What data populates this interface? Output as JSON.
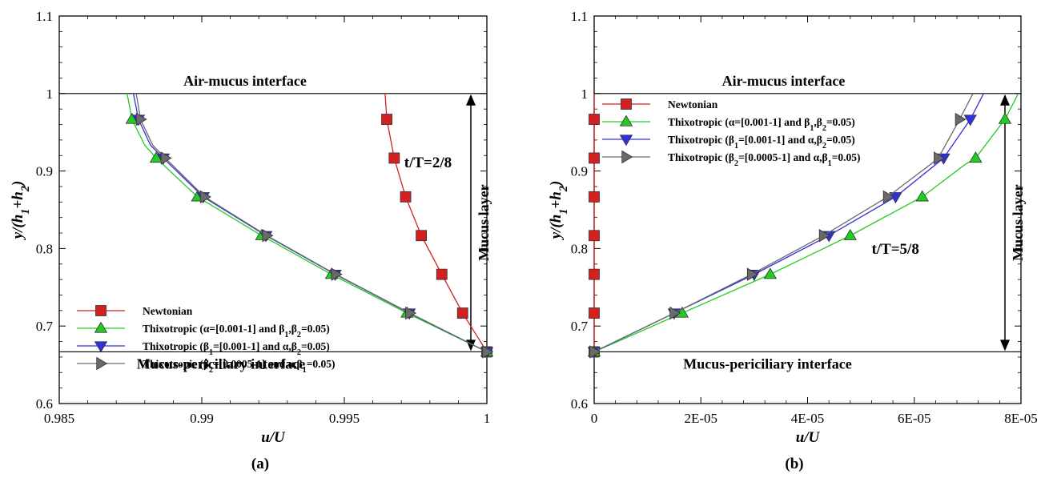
{
  "chart_data": [
    {
      "type": "line",
      "panel_label": "(a)",
      "xlabel": "u/U",
      "ylabel_html": [
        "y/(h",
        "1",
        "+h",
        "2",
        ")"
      ],
      "xlim": [
        0.985,
        1.0
      ],
      "ylim": [
        0.6,
        1.1
      ],
      "xticks": [
        0.985,
        0.99,
        0.995,
        1.0
      ],
      "xtick_labels": [
        "0.985",
        "0.99",
        "0.995",
        "1"
      ],
      "yticks": [
        0.6,
        0.7,
        0.8,
        0.9,
        1.0,
        1.1
      ],
      "ytick_labels": [
        "0.6",
        "0.7",
        "0.8",
        "0.9",
        "1",
        "1.1"
      ],
      "top_interface": {
        "y": 1.0,
        "label": "Air-mucus interface"
      },
      "bottom_interface": {
        "y": 0.6667,
        "label": "Mucus-periciliary interface"
      },
      "layer_label": "Mucus layer",
      "annotation": {
        "text": "t/T=2/8",
        "x": 0.9971,
        "y": 0.905
      },
      "legend_position": "bottom-left",
      "series": [
        {
          "name": "Newtonian",
          "color": "#d42020",
          "marker": "square",
          "line_x": [
            0.99643,
            0.99649,
            0.99675,
            0.99715,
            0.9977,
            0.99842,
            0.99915,
            1.0
          ],
          "line_y": [
            1.0,
            0.9667,
            0.9167,
            0.8667,
            0.8167,
            0.7667,
            0.7167,
            0.6667
          ],
          "marker_x": [
            0.99649,
            0.99675,
            0.99715,
            0.9977,
            0.99842,
            0.99915,
            1.0
          ],
          "marker_y": [
            0.9667,
            0.9167,
            0.8667,
            0.8167,
            0.7667,
            0.7167,
            0.6667
          ]
        },
        {
          "name": "Thixotropic (α=[0.001-1] and β1,β2=0.05)",
          "color": "#22cc22",
          "marker": "triangle-up",
          "line_x": [
            0.98738,
            0.98755,
            0.988,
            0.9884,
            0.98985,
            0.9921,
            0.99455,
            0.9972,
            1.0
          ],
          "line_y": [
            1.0,
            0.9667,
            0.9333,
            0.9167,
            0.8667,
            0.8167,
            0.7667,
            0.7167,
            0.6667
          ],
          "marker_x": [
            0.98755,
            0.9884,
            0.98985,
            0.9921,
            0.99455,
            0.9972,
            1.0
          ],
          "marker_y": [
            0.9667,
            0.9167,
            0.8667,
            0.8167,
            0.7667,
            0.7167,
            0.6667
          ]
        },
        {
          "name": "Thixotropic (β1=[0.001-1] and α,β2=0.05)",
          "color": "#3030e0",
          "marker": "triangle-down",
          "line_x": [
            0.9876,
            0.98778,
            0.9882,
            0.98865,
            0.99005,
            0.99225,
            0.99468,
            0.99728,
            1.0
          ],
          "line_y": [
            1.0,
            0.9667,
            0.9333,
            0.9167,
            0.8667,
            0.8167,
            0.7667,
            0.7167,
            0.6667
          ],
          "marker_x": [
            0.98778,
            0.98865,
            0.99005,
            0.99225,
            0.99468,
            0.99728,
            1.0
          ],
          "marker_y": [
            0.9667,
            0.9167,
            0.8667,
            0.8167,
            0.7667,
            0.7167,
            0.6667
          ]
        },
        {
          "name": "Thixotropic (β2=[0.0005-1] and α,β1=0.05)",
          "color": "#6a6a6a",
          "marker": "triangle-right",
          "line_x": [
            0.9877,
            0.98785,
            0.98828,
            0.98872,
            0.9901,
            0.99228,
            0.9947,
            0.9973,
            1.0
          ],
          "line_y": [
            1.0,
            0.9667,
            0.9333,
            0.9167,
            0.8667,
            0.8167,
            0.7667,
            0.7167,
            0.6667
          ],
          "marker_x": [
            0.98785,
            0.98872,
            0.9901,
            0.99228,
            0.9947,
            0.9973,
            1.0
          ],
          "marker_y": [
            0.9667,
            0.9167,
            0.8667,
            0.8167,
            0.7667,
            0.7167,
            0.6667
          ]
        }
      ]
    },
    {
      "type": "line",
      "panel_label": "(b)",
      "xlabel": "u/U",
      "ylabel_html": [
        "y/(h",
        "1",
        "+h",
        "2",
        ")"
      ],
      "xlim": [
        0,
        8e-05
      ],
      "ylim": [
        0.6,
        1.1
      ],
      "xticks": [
        0,
        2e-05,
        4e-05,
        6e-05,
        8e-05
      ],
      "xtick_labels": [
        "0",
        "2E-05",
        "4E-05",
        "6E-05",
        "8E-05"
      ],
      "yticks": [
        0.6,
        0.7,
        0.8,
        0.9,
        1.0,
        1.1
      ],
      "ytick_labels": [
        "0.6",
        "0.7",
        "0.8",
        "0.9",
        "1",
        "1.1"
      ],
      "top_interface": {
        "y": 1.0,
        "label": "Air-mucus interface"
      },
      "bottom_interface": {
        "y": 0.6667,
        "label": "Mucus-periciliary interface"
      },
      "layer_label": "Mucus layer",
      "annotation": {
        "text": "t/T=5/8",
        "x": 5.2e-05,
        "y": 0.793
      },
      "legend_position": "top-left",
      "series": [
        {
          "name": "Newtonian",
          "color": "#d42020",
          "marker": "square",
          "line_x": [
            0,
            0,
            0,
            0,
            0,
            0,
            0,
            0
          ],
          "line_y": [
            1.0,
            0.9667,
            0.9167,
            0.8667,
            0.8167,
            0.7667,
            0.7167,
            0.6667
          ],
          "marker_x": [
            0,
            0,
            0,
            0,
            0,
            0,
            0
          ],
          "marker_y": [
            0.9667,
            0.9167,
            0.8667,
            0.8167,
            0.7667,
            0.7167,
            0.6667
          ]
        },
        {
          "name": "Thixotropic (α=[0.001-1] and β1,β2=0.05)",
          "color": "#22cc22",
          "marker": "triangle-up",
          "line_x": [
            0,
            1.65e-05,
            3.3e-05,
            4.8e-05,
            6.15e-05,
            6.95e-05,
            7.15e-05,
            7.7e-05,
            7.95e-05
          ],
          "line_y": [
            0.6667,
            0.7167,
            0.7667,
            0.8167,
            0.8667,
            0.9083,
            0.9167,
            0.9667,
            1.0
          ],
          "marker_x": [
            0,
            1.65e-05,
            3.3e-05,
            4.8e-05,
            6.15e-05,
            7.15e-05,
            7.7e-05
          ],
          "marker_y": [
            0.6667,
            0.7167,
            0.7667,
            0.8167,
            0.8667,
            0.9167,
            0.9667
          ]
        },
        {
          "name": "Thixotropic (β1=[0.001-1] and α,β2=0.05)",
          "color": "#3030e0",
          "marker": "triangle-down",
          "line_x": [
            0,
            1.5e-05,
            3e-05,
            4.4e-05,
            5.65e-05,
            6.4e-05,
            6.55e-05,
            7.05e-05,
            7.3e-05
          ],
          "line_y": [
            0.6667,
            0.7167,
            0.7667,
            0.8167,
            0.8667,
            0.9083,
            0.9167,
            0.9667,
            1.0
          ],
          "marker_x": [
            0,
            1.5e-05,
            3e-05,
            4.4e-05,
            5.65e-05,
            6.55e-05,
            7.05e-05
          ],
          "marker_y": [
            0.6667,
            0.7167,
            0.7667,
            0.8167,
            0.8667,
            0.9167,
            0.9667
          ]
        },
        {
          "name": "Thixotropic (β2=[0.0005-1] and α,β1=0.05)",
          "color": "#6a6a6a",
          "marker": "triangle-right",
          "line_x": [
            0,
            1.5e-05,
            2.95e-05,
            4.3e-05,
            5.5e-05,
            6.3e-05,
            6.45e-05,
            6.85e-05,
            7.1e-05
          ],
          "line_y": [
            0.6667,
            0.7167,
            0.7667,
            0.8167,
            0.8667,
            0.9083,
            0.9167,
            0.9667,
            1.0
          ],
          "marker_x": [
            0,
            1.5e-05,
            2.95e-05,
            4.3e-05,
            5.5e-05,
            6.45e-05,
            6.85e-05
          ],
          "marker_y": [
            0.6667,
            0.7167,
            0.7667,
            0.8167,
            0.8667,
            0.9167,
            0.9667
          ]
        }
      ]
    }
  ]
}
